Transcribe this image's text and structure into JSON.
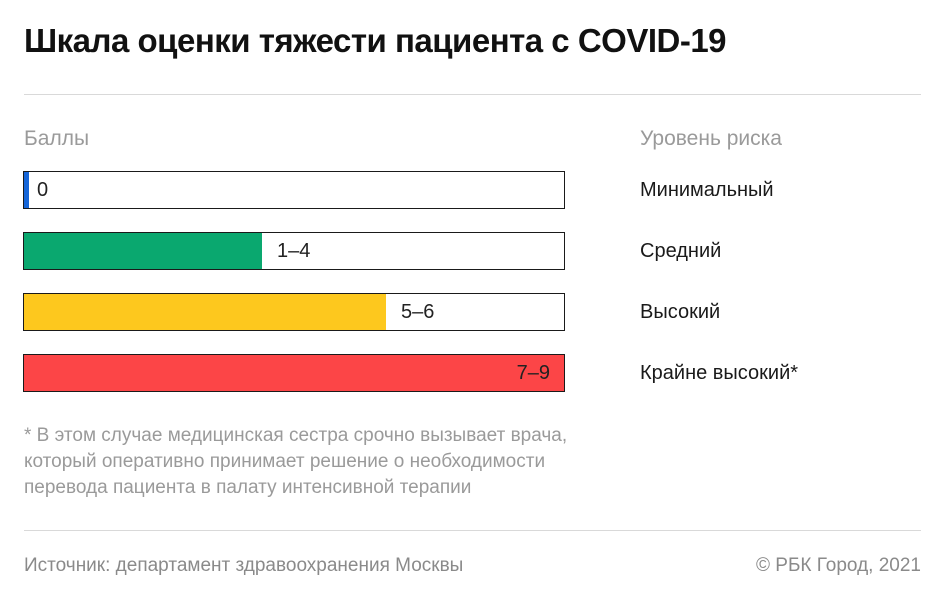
{
  "title": "Шкала оценки тяжести пациента с COVID-19",
  "headers": {
    "left": "Баллы",
    "right": "Уровень риска"
  },
  "chart_data": {
    "type": "bar",
    "orientation": "horizontal",
    "title": "Шкала оценки тяжести пациента с COVID-19",
    "xlabel": "Баллы",
    "ylabel": "Уровень риска",
    "xlim": [
      0,
      9
    ],
    "grid": false,
    "categories": [
      "Минимальный",
      "Средний",
      "Высокий",
      "Крайне высокий*"
    ],
    "bars": [
      {
        "score_label": "0",
        "risk": "Минимальный",
        "min": 0,
        "max": 0,
        "fill_fraction": 0.01,
        "color": "#1565d8"
      },
      {
        "score_label": "1–4",
        "risk": "Средний",
        "min": 1,
        "max": 4,
        "fill_fraction": 0.44,
        "color": "#0aa86f"
      },
      {
        "score_label": "5–6",
        "risk": "Высокий",
        "min": 5,
        "max": 6,
        "fill_fraction": 0.67,
        "color": "#fdc81e"
      },
      {
        "score_label": "7–9",
        "risk": "Крайне высокий*",
        "min": 7,
        "max": 9,
        "fill_fraction": 1.0,
        "color": "#fc4547"
      }
    ]
  },
  "footnote": {
    "lines": [
      "* В этом случае медицинская сестра срочно вызывает врача,",
      "который оперативно принимает решение о необходимости",
      "перевода пациента в палату интенсивной терапии"
    ]
  },
  "footer": {
    "source": "Источник: департамент здравоохранения Москвы",
    "credit": "© РБК Город, 2021"
  }
}
